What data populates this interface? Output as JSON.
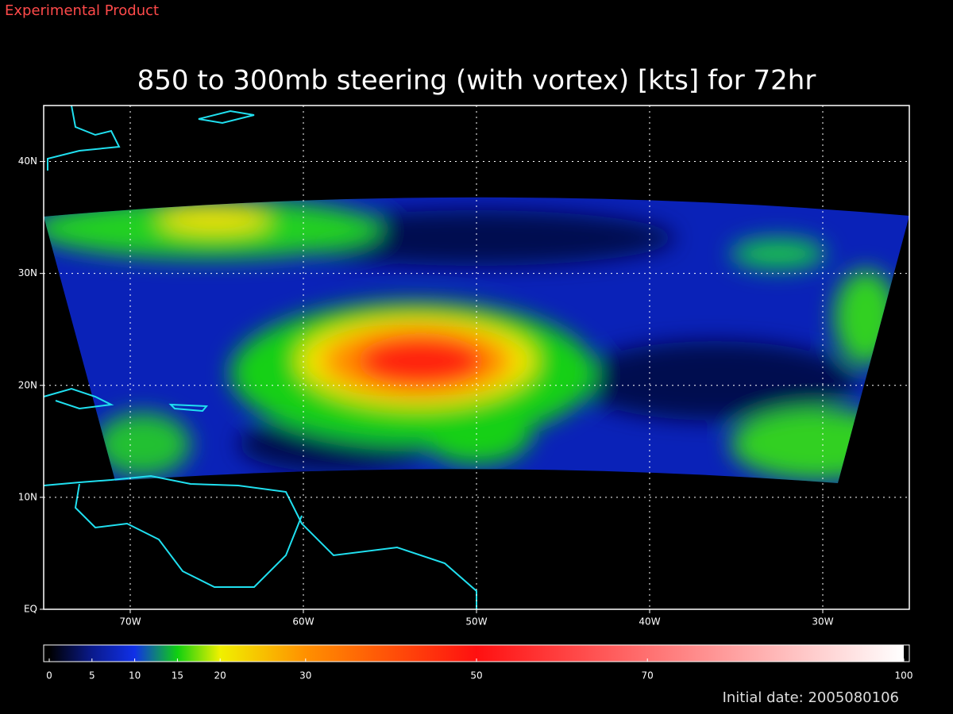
{
  "chart_data": {
    "type": "map",
    "product_label": "Experimental Product",
    "title": "850 to 300mb steering (with vortex) [kts] for 72hr",
    "xlim": [
      -75,
      -25
    ],
    "ylim": [
      0,
      45
    ],
    "xticks": [
      {
        "value": -70,
        "label": "70W"
      },
      {
        "value": -60,
        "label": "60W"
      },
      {
        "value": -50,
        "label": "50W"
      },
      {
        "value": -40,
        "label": "40W"
      },
      {
        "value": -30,
        "label": "30W"
      }
    ],
    "yticks": [
      {
        "value": 0,
        "label": "EQ"
      },
      {
        "value": 10,
        "label": "10N"
      },
      {
        "value": 20,
        "label": "20N"
      },
      {
        "value": 30,
        "label": "30N"
      },
      {
        "value": 40,
        "label": "40N"
      }
    ],
    "grid": true,
    "colorbar": {
      "ticks": [
        0,
        5,
        10,
        15,
        20,
        30,
        50,
        70,
        100
      ],
      "colors": [
        "#000000",
        "#0a1a8c",
        "#1030e8",
        "#10d010",
        "#f0f000",
        "#ff9000",
        "#ff1010",
        "#ff7070",
        "#ffffff"
      ]
    },
    "footer": "Initial date: 2005080106"
  }
}
